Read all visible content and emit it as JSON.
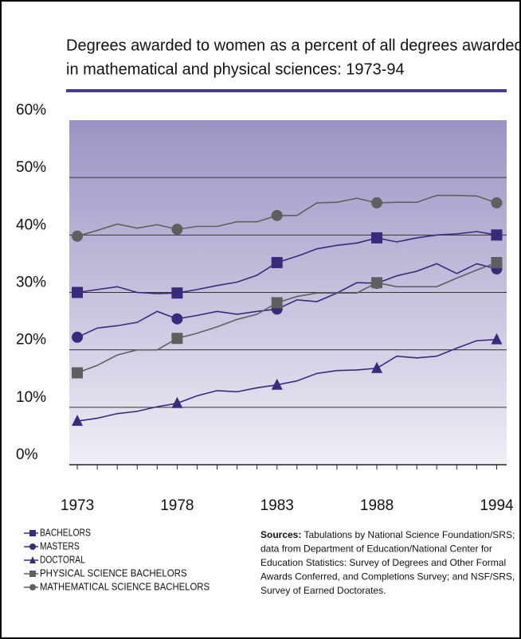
{
  "chart_data": {
    "type": "line",
    "title": [
      "Degrees awarded to women as a percent of all degrees awarded",
      "in mathematical and physical sciences: 1973-94"
    ],
    "x": [
      1973,
      1974,
      1975,
      1976,
      1977,
      1978,
      1979,
      1980,
      1981,
      1982,
      1983,
      1984,
      1985,
      1986,
      1987,
      1988,
      1989,
      1990,
      1991,
      1992,
      1993,
      1994
    ],
    "xlim": [
      1972.6,
      1994.5
    ],
    "xticks": [
      1973,
      1978,
      1983,
      1988,
      1994
    ],
    "ylim": [
      0,
      60
    ],
    "yticks": [
      {
        "value": 0,
        "label": "0%"
      },
      {
        "value": 10,
        "label": "10%"
      },
      {
        "value": 20,
        "label": "20%"
      },
      {
        "value": 30,
        "label": "30%"
      },
      {
        "value": 40,
        "label": "40%"
      },
      {
        "value": 50,
        "label": "50%"
      },
      {
        "value": 60,
        "label": "60%"
      }
    ],
    "grid": true,
    "series": [
      {
        "name": "BACHELORS",
        "color": "#3b2a7c",
        "marker": "square",
        "values": [
          30,
          30.5,
          31,
          30,
          29.8,
          29.9,
          30.5,
          31.2,
          31.8,
          33,
          35.2,
          36.3,
          37.6,
          38.2,
          38.6,
          39.5,
          38.8,
          39.5,
          40,
          40.2,
          40.6,
          40
        ]
      },
      {
        "name": "MASTERS",
        "color": "#3b2a7c",
        "marker": "circle",
        "values": [
          22.2,
          23.8,
          24.2,
          24.8,
          26.7,
          25.4,
          26,
          26.7,
          26.2,
          26.7,
          27.1,
          28.7,
          28.4,
          29.9,
          31.7,
          31.6,
          32.9,
          33.7,
          35,
          33.3,
          35,
          34.1
        ]
      },
      {
        "name": "DOCTORAL",
        "color": "#3b2a7c",
        "marker": "triangle",
        "values": [
          7.6,
          8.1,
          8.9,
          9.3,
          10.1,
          10.7,
          12,
          12.9,
          12.7,
          13.4,
          13.9,
          14.6,
          15.9,
          16.4,
          16.5,
          16.8,
          18.9,
          18.6,
          18.9,
          20.3,
          21.6,
          21.8
        ]
      },
      {
        "name": "PHYSICAL SCIENCE BACHELORS",
        "color": "#5f5f5f",
        "marker": "square",
        "values": [
          16,
          17.3,
          19.1,
          20,
          20,
          22,
          22.9,
          24,
          25.3,
          26.2,
          28.2,
          29.3,
          29.9,
          29.9,
          29.9,
          31.7,
          31,
          31,
          31,
          32.5,
          33.9,
          35.2
        ]
      },
      {
        "name": "MATHEMATICAL SCIENCE BACHELORS",
        "color": "#5f5f5f",
        "marker": "circle",
        "values": [
          39.8,
          40.8,
          41.9,
          41.2,
          41.8,
          41,
          41.5,
          41.5,
          42.3,
          42.3,
          43.4,
          43.4,
          45.6,
          45.7,
          46.4,
          45.6,
          45.7,
          45.7,
          46.9,
          46.9,
          46.8,
          45.6
        ]
      }
    ],
    "sources": {
      "label": "Sources:",
      "lines": [
        " Tabulations by National Science Foundation/SRS;",
        "data from Department of Education/National Center for",
        "Education Statistics: Survey of Degrees and Other Formal",
        "Awards Conferred, and Completions Survey; and NSF/SRS,",
        "Survey of Earned Doctorates."
      ]
    }
  }
}
